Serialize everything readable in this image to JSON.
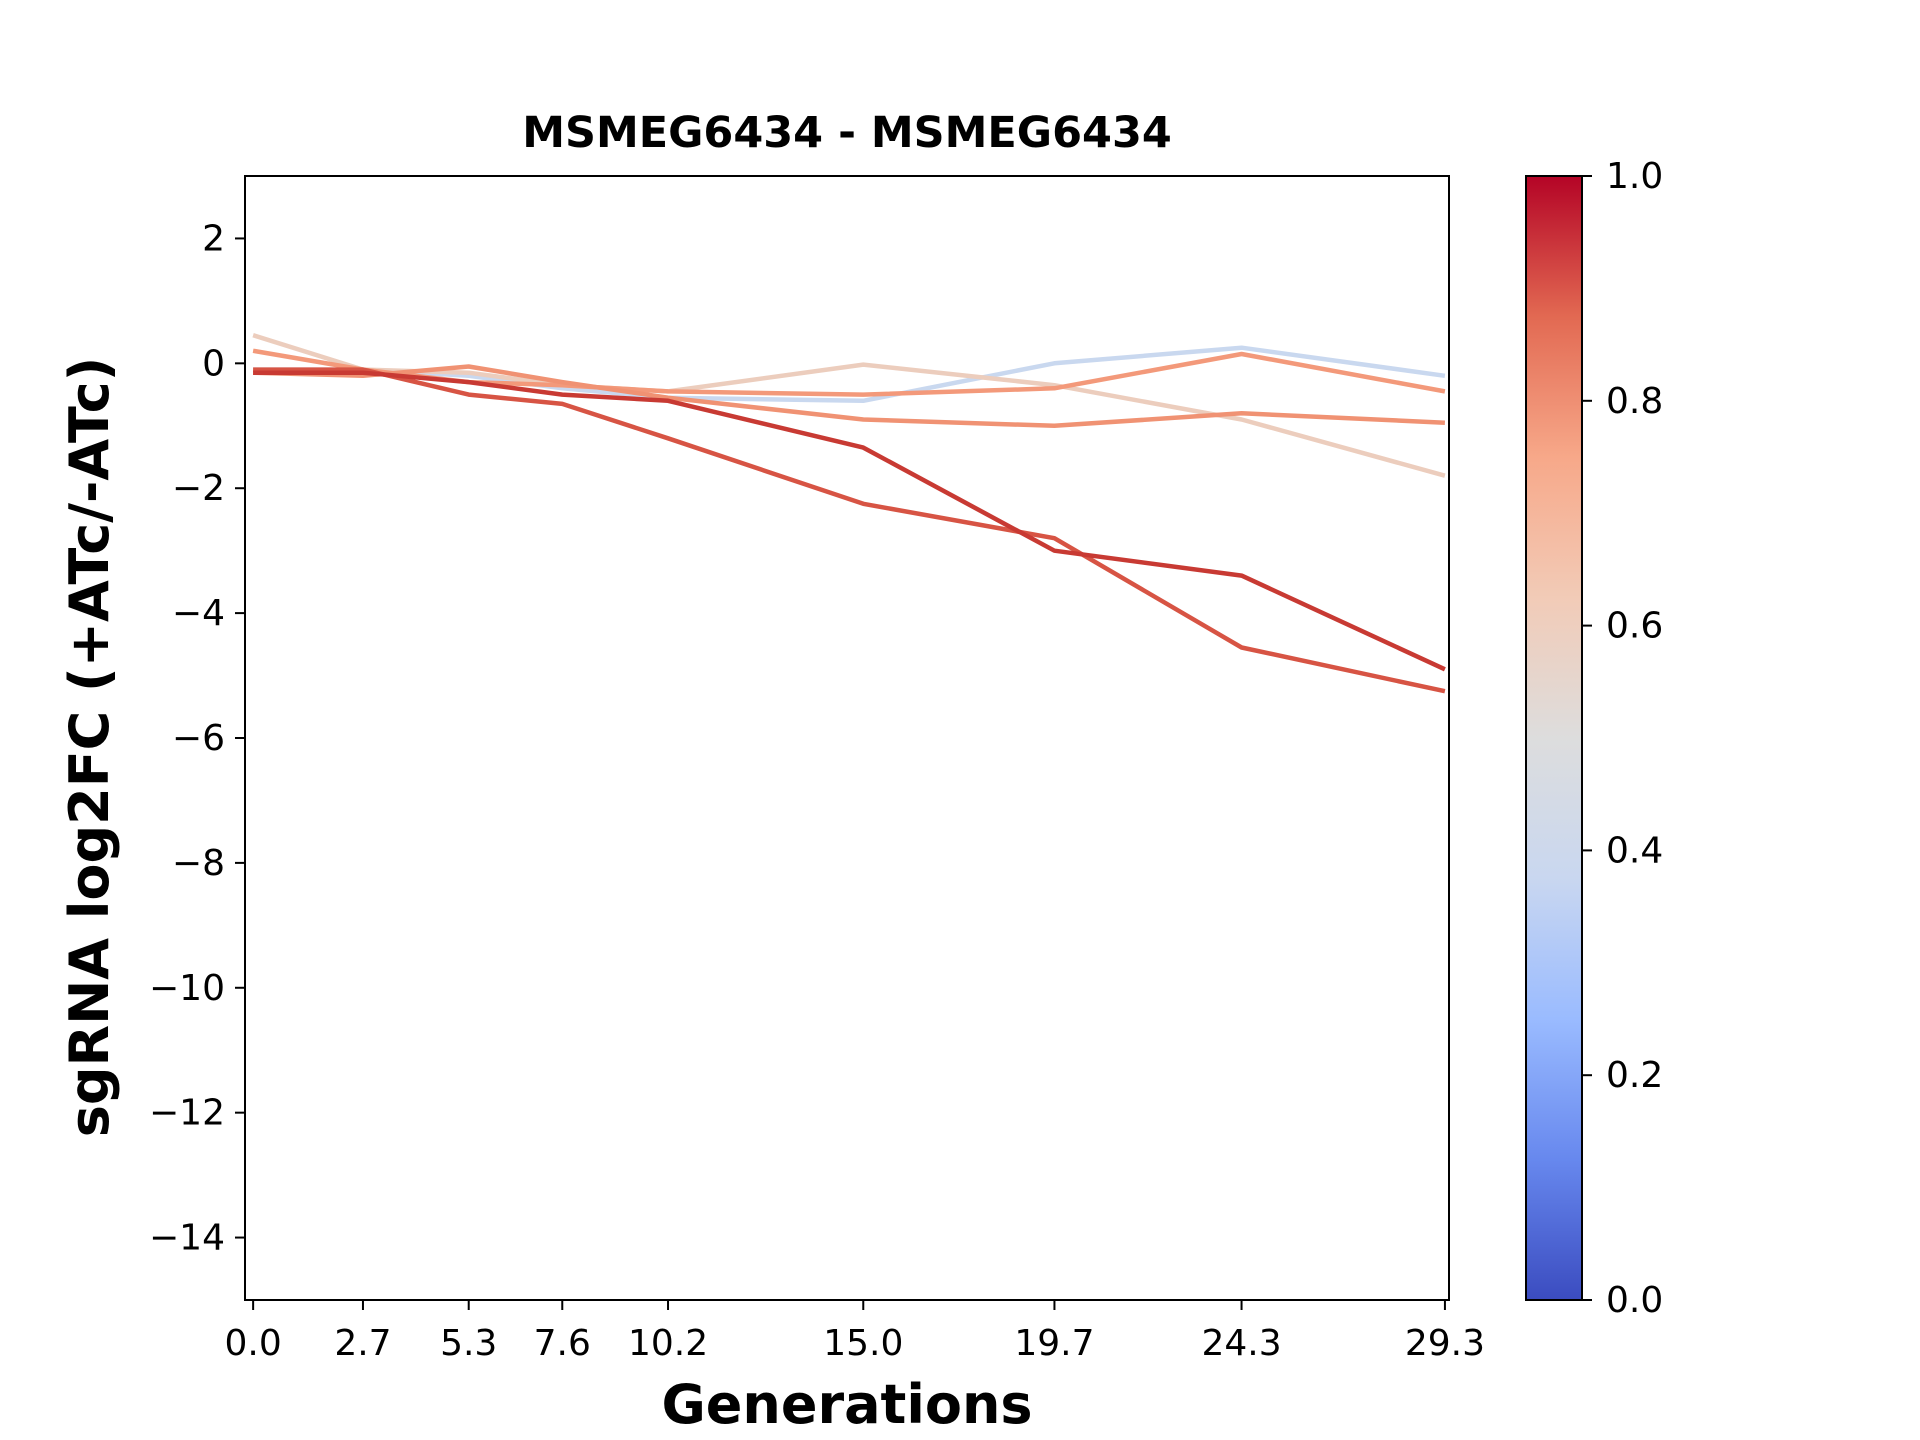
{
  "chart_data": {
    "type": "line",
    "title": "MSMEG6434 - MSMEG6434",
    "xlabel": "Generations",
    "ylabel": "sgRNA log2FC (+ATc/-ATc)",
    "x": [
      0.0,
      2.7,
      5.3,
      7.6,
      10.2,
      15.0,
      19.7,
      24.3,
      29.3
    ],
    "x_tick_labels": [
      "0.0",
      "2.7",
      "5.3",
      "7.6",
      "10.2",
      "15.0",
      "19.7",
      "24.3",
      "29.3"
    ],
    "xlim": [
      -0.2,
      29.4
    ],
    "ylim": [
      -15,
      3
    ],
    "y_ticks": [
      2,
      0,
      -2,
      -4,
      -6,
      -8,
      -10,
      -12,
      -14
    ],
    "y_tick_labels": [
      "2",
      "0",
      "−2",
      "−4",
      "−6",
      "−8",
      "−10",
      "−12",
      "−14"
    ],
    "grid": false,
    "colormap": "coolwarm",
    "colorbar": {
      "range": [
        0.0,
        1.0
      ],
      "ticks": [
        0.0,
        0.2,
        0.4,
        0.6,
        0.8,
        1.0
      ],
      "tick_labels": [
        "0.0",
        "0.2",
        "0.4",
        "0.6",
        "0.8",
        "1.0"
      ],
      "stops": [
        "#3b4cc0",
        "#6788ee",
        "#9abbff",
        "#c9d7f0",
        "#dddddd",
        "#f2cbb7",
        "#f7a889",
        "#e26952",
        "#b40426"
      ]
    },
    "series": [
      {
        "color_value": 0.42,
        "color": "#c9d8ef",
        "values": [
          -0.1,
          -0.1,
          -0.2,
          -0.4,
          -0.55,
          -0.6,
          0.0,
          0.25,
          -0.2
        ]
      },
      {
        "color_value": 0.58,
        "color": "#eccdbd",
        "values": [
          0.45,
          -0.1,
          -0.15,
          -0.35,
          -0.45,
          -0.02,
          -0.35,
          -0.9,
          -1.8
        ]
      },
      {
        "color_value": 0.75,
        "color": "#f3997a",
        "values": [
          0.2,
          -0.1,
          -0.3,
          -0.35,
          -0.45,
          -0.5,
          -0.4,
          0.15,
          -0.45
        ]
      },
      {
        "color_value": 0.78,
        "color": "#f09273",
        "values": [
          -0.15,
          -0.2,
          -0.05,
          -0.3,
          -0.55,
          -0.9,
          -1.0,
          -0.8,
          -0.95
        ]
      },
      {
        "color_value": 0.88,
        "color": "#d75444",
        "values": [
          -0.1,
          -0.1,
          -0.5,
          -0.65,
          -1.2,
          -2.25,
          -2.8,
          -4.55,
          -5.25
        ]
      },
      {
        "color_value": 0.93,
        "color": "#c83a33",
        "values": [
          -0.15,
          -0.15,
          -0.3,
          -0.5,
          -0.6,
          -1.35,
          -3.0,
          -3.4,
          -4.9
        ]
      }
    ]
  }
}
